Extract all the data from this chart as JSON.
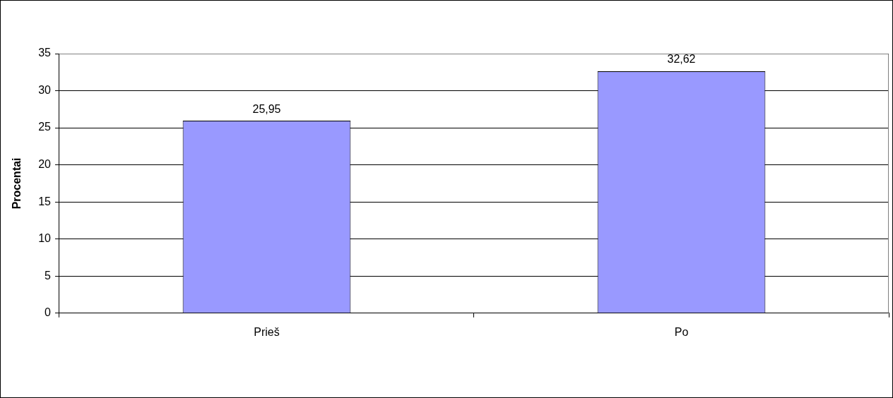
{
  "chart_data": {
    "type": "bar",
    "ylabel": "Procentai",
    "categories": [
      "Prieš",
      "Po"
    ],
    "values": [
      25.95,
      32.62
    ],
    "value_labels": [
      "25,95",
      "32,62"
    ],
    "color": "#9999ff",
    "ylim": [
      0,
      35
    ],
    "yticks": [
      0,
      5,
      10,
      15,
      20,
      25,
      30,
      35
    ],
    "grid": "y",
    "legend": false
  }
}
